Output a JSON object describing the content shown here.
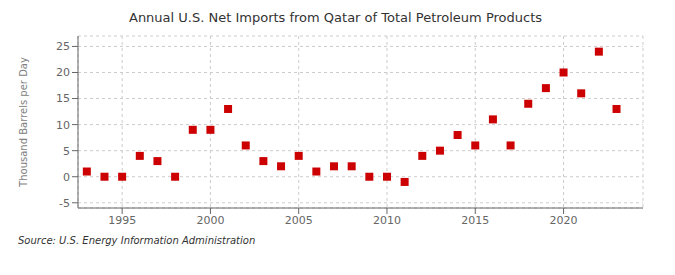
{
  "chart_data": {
    "type": "scatter",
    "title": "Annual U.S. Net Imports from Qatar of Total Petroleum Products",
    "ylabel": "Thousand Barrels per Day",
    "annotations": [
      "Source: U.S. Energy Information Administration"
    ],
    "x": [
      1993,
      1994,
      1995,
      1996,
      1997,
      1998,
      1999,
      2000,
      2001,
      2002,
      2003,
      2004,
      2005,
      2006,
      2007,
      2008,
      2009,
      2010,
      2011,
      2012,
      2013,
      2014,
      2015,
      2016,
      2017,
      2018,
      2019,
      2020,
      2021,
      2022,
      2023
    ],
    "values": [
      1,
      0,
      0,
      4,
      3,
      0,
      9,
      9,
      13,
      6,
      3,
      2,
      4,
      1,
      2,
      2,
      0,
      0,
      -1,
      4,
      5,
      8,
      6,
      11,
      6,
      14,
      17,
      20,
      16,
      24,
      13
    ],
    "color": "#cc0000",
    "marker": "square",
    "xlim": [
      1992.5,
      2024.5
    ],
    "xticks": [
      1995,
      2000,
      2005,
      2010,
      2015,
      2020
    ],
    "ylim": [
      -6,
      27
    ],
    "yticks": [
      -5,
      0,
      5,
      10,
      15,
      20,
      25
    ],
    "grid": true
  }
}
